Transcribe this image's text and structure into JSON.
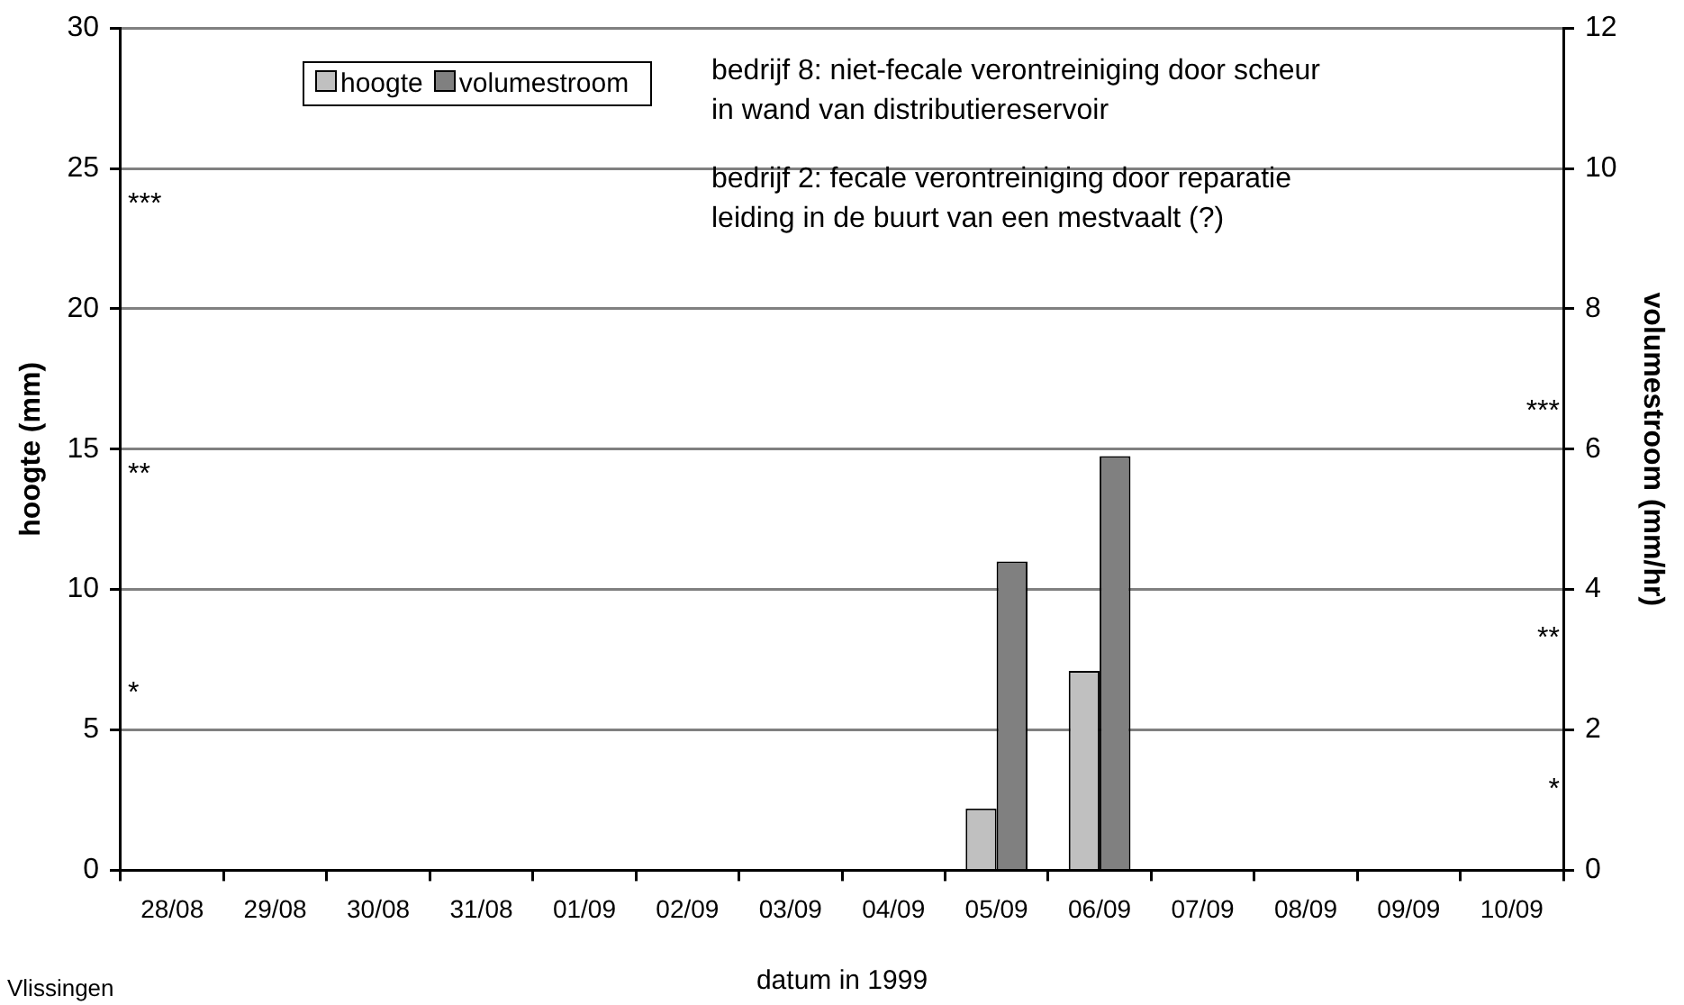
{
  "chart_data": {
    "type": "bar",
    "xlabel": "datum in 1999",
    "ylabel": "hoogte (mm)",
    "y2label": "volumestroom (mm/hr)",
    "categories": [
      "28/08",
      "29/08",
      "30/08",
      "31/08",
      "01/09",
      "02/09",
      "03/09",
      "04/09",
      "05/09",
      "06/09",
      "07/09",
      "08/09",
      "09/09",
      "10/09"
    ],
    "series": [
      {
        "name": "hoogte",
        "color": "#c0c0c0",
        "values": [
          0,
          0,
          0,
          0,
          0,
          0,
          0,
          0,
          2.2,
          7.1,
          0,
          0,
          0,
          0
        ]
      },
      {
        "name": "volumestroom",
        "color": "#808080",
        "axis": "y2",
        "values": [
          0,
          0,
          0,
          0,
          0,
          0,
          0,
          0,
          4.4,
          5.9,
          0,
          0,
          0,
          0
        ]
      }
    ],
    "ylim": [
      0,
      30
    ],
    "yticks": [
      0,
      5,
      10,
      15,
      20,
      25,
      30
    ],
    "y2lim": [
      0,
      12
    ],
    "y2ticks": [
      0,
      2,
      4,
      6,
      8,
      10,
      12
    ],
    "grid": "y",
    "legend": "top left",
    "annotations": [
      "bedrijf 8: niet-fecale verontreiniging door scheur in wand van distributiereservoir",
      "bedrijf 2: fecale verontreiniging door reparatie leiding in de buurt van een mestvaalt (?)",
      "***",
      "**",
      "*",
      "***",
      "**",
      "*",
      "Vlissingen"
    ]
  }
}
